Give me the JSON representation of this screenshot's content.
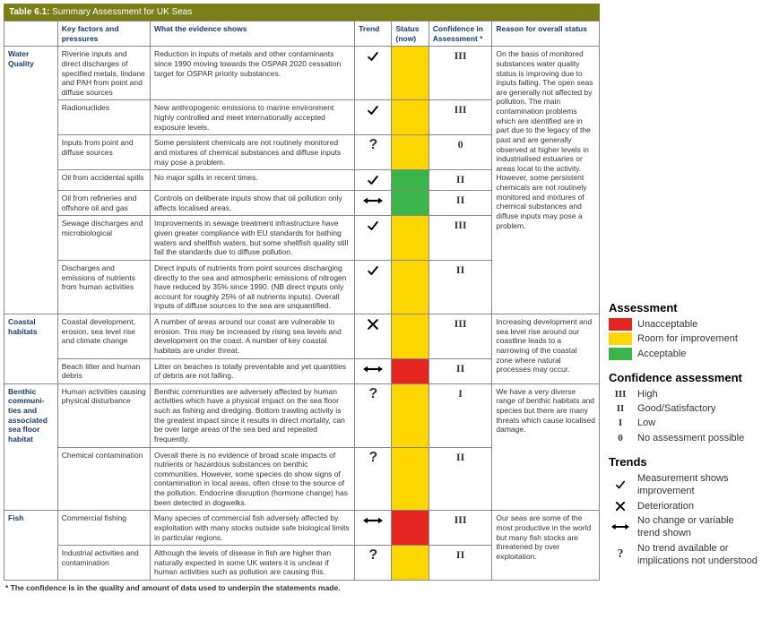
{
  "title_prefix": "Table 6.1:",
  "title_text": "Summary Assessment for UK Seas",
  "colors": {
    "unacceptable": "#e52620",
    "room": "#fdd600",
    "acceptable": "#39b54a",
    "header_bg": "#7a7f1a"
  },
  "columns": [
    "",
    "Key factors and pressures",
    "What the evidence shows",
    "Trend",
    "Status (now)",
    "Confidence in Assessment *",
    "Reason for overall status"
  ],
  "footnote": "* The confidence is in the quality and amount of data used to underpin the statements made.",
  "groups": [
    {
      "category": "Water Quality",
      "reason": "On the basis of monitored substances water quality status is improving due to inputs falling. The open seas are generally not affected by pollution. The main contamination problems which are identified are in part due to the legacy of the past and are generally observed at higher levels in industrialised estuaries or areas local to the activity. However, some persistent chemicals are not routinely monitored and mixtures of chemical substances and diffuse inputs may pose a problem.",
      "rows": [
        {
          "factor": "Riverine inputs and direct discharges of specified metals, lindane and PAH from point and diffuse sources",
          "evidence": "Reduction in inputs of metals and other contaminants since 1990 moving towards the OSPAR 2020 cessation target for OSPAR priority substances.",
          "trend": "improve",
          "status": "room",
          "confidence": "III"
        },
        {
          "factor": "Radionuclides",
          "evidence": "New anthropogenic emissions to marine environment highly controlled and meet internationally accepted exposure levels.",
          "trend": "improve",
          "status": "room",
          "confidence": "III"
        },
        {
          "factor": "Inputs from point and diffuse sources",
          "evidence": "Some persistent chemicals are not routinely monitored and mixtures of chemical substances and diffuse inputs may pose a problem.",
          "trend": "unknown",
          "status": "room",
          "confidence": "0"
        },
        {
          "factor": "Oil from accidental spills",
          "evidence": "No major spills in recent times.",
          "trend": "improve",
          "status": "acceptable",
          "confidence": "II"
        },
        {
          "factor": "Oil from refineries and offshore oil and gas",
          "evidence": "Controls on deliberate inputs show that oil pollution only affects localised areas.",
          "trend": "nochange",
          "status": "acceptable",
          "confidence": "II"
        },
        {
          "factor": "Sewage discharges and microbiological",
          "evidence": "Improvements in sewage treatment infrastructure have given greater compliance with EU standards for bathing waters and shellfish waters, but some shellfish quality still fail the standards due to diffuse pollution.",
          "trend": "improve",
          "status": "room",
          "confidence": "III"
        },
        {
          "factor": "Discharges and emissions of nutrients from human activities",
          "evidence": "Direct inputs of nutrients from point sources discharging directly to the sea and atmospheric emissions of nitrogen have reduced by 35% since 1990. (NB direct inputs only account for roughly 25% of all nutrients inputs). Overall inputs of diffuse sources to the sea are unquantified.",
          "trend": "improve",
          "status": "room",
          "confidence": "II"
        }
      ]
    },
    {
      "category": "Coastal habitats",
      "reason": "Increasing development and sea level rise around our coastline leads to a narrowing of the coastal zone where natural processes may occur.",
      "rows": [
        {
          "factor": "Coastal development, erosion, sea level rise and climate change",
          "evidence": "A number of areas around our coast are vulnerable to erosion. This may be increased by rising sea levels and development on the coast. A number of key coastal habitats are under threat.",
          "trend": "deteriorate",
          "status": "room",
          "confidence": "III"
        },
        {
          "factor": "Beach litter and human debris",
          "evidence": "Litter on beaches is totally preventable and yet quantities of debris are not falling.",
          "trend": "nochange",
          "status": "unacceptable",
          "confidence": "II"
        }
      ]
    },
    {
      "category": "Benthic communi-ties and associated sea floor habitat",
      "reason": "We have a very diverse range of benthic habitats and species but there are many threats which cause localised damage.",
      "rows": [
        {
          "factor": "Human activities causing physical disturbance",
          "evidence": "Benthic communities are adversely affected by human activities which have a physical impact on the sea floor such as fishing and dredging. Bottom trawling activity is the greatest impact since it results in direct mortality, can be over large areas of the sea bed and repeated frequently.",
          "trend": "unknown",
          "status": "room",
          "confidence": "I"
        },
        {
          "factor": "Chemical contamination",
          "evidence": "Overall there is no evidence of broad scale impacts of nutrients or hazardous substances on benthic communities. However, some species do show signs of contamination in local areas, often close to the source of the pollution. Endocrine disruption (hormone change) has been detected in dogwelks.",
          "trend": "unknown",
          "status": "room",
          "confidence": "II"
        }
      ]
    },
    {
      "category": "Fish",
      "reason": "Our seas are some of the most productive in the world but many fish stocks are threatened by over exploitation.",
      "rows": [
        {
          "factor": "Commercial fishing",
          "evidence": "Many species of commercial fish adversely affected by exploitation with many stocks outside safe biological limits in particular regions.",
          "trend": "nochange",
          "status": "unacceptable",
          "confidence": "III"
        },
        {
          "factor": "Industrial activities and contamination",
          "evidence": "Although the levels of disease in fish are higher than naturally expected in some UK waters it is unclear if human activities such as pollution are causing this.",
          "trend": "unknown",
          "status": "room",
          "confidence": "II"
        }
      ]
    }
  ],
  "legend": {
    "assessment_title": "Assessment",
    "assessment": [
      {
        "color": "unacceptable",
        "label": "Unacceptable"
      },
      {
        "color": "room",
        "label": "Room for improvement"
      },
      {
        "color": "acceptable",
        "label": "Acceptable"
      }
    ],
    "confidence_title": "Confidence assessment",
    "confidence": [
      {
        "sym": "III",
        "label": "High"
      },
      {
        "sym": "II",
        "label": "Good/Satisfactory"
      },
      {
        "sym": "I",
        "label": "Low"
      },
      {
        "sym": "0",
        "label": "No assessment possible"
      }
    ],
    "trends_title": "Trends",
    "trends": [
      {
        "sym": "improve",
        "label": "Measurement shows improvement"
      },
      {
        "sym": "deteriorate",
        "label": "Deterioration"
      },
      {
        "sym": "nochange",
        "label": "No change or variable trend shown"
      },
      {
        "sym": "unknown",
        "label": "No trend available or implications not understood"
      }
    ]
  }
}
